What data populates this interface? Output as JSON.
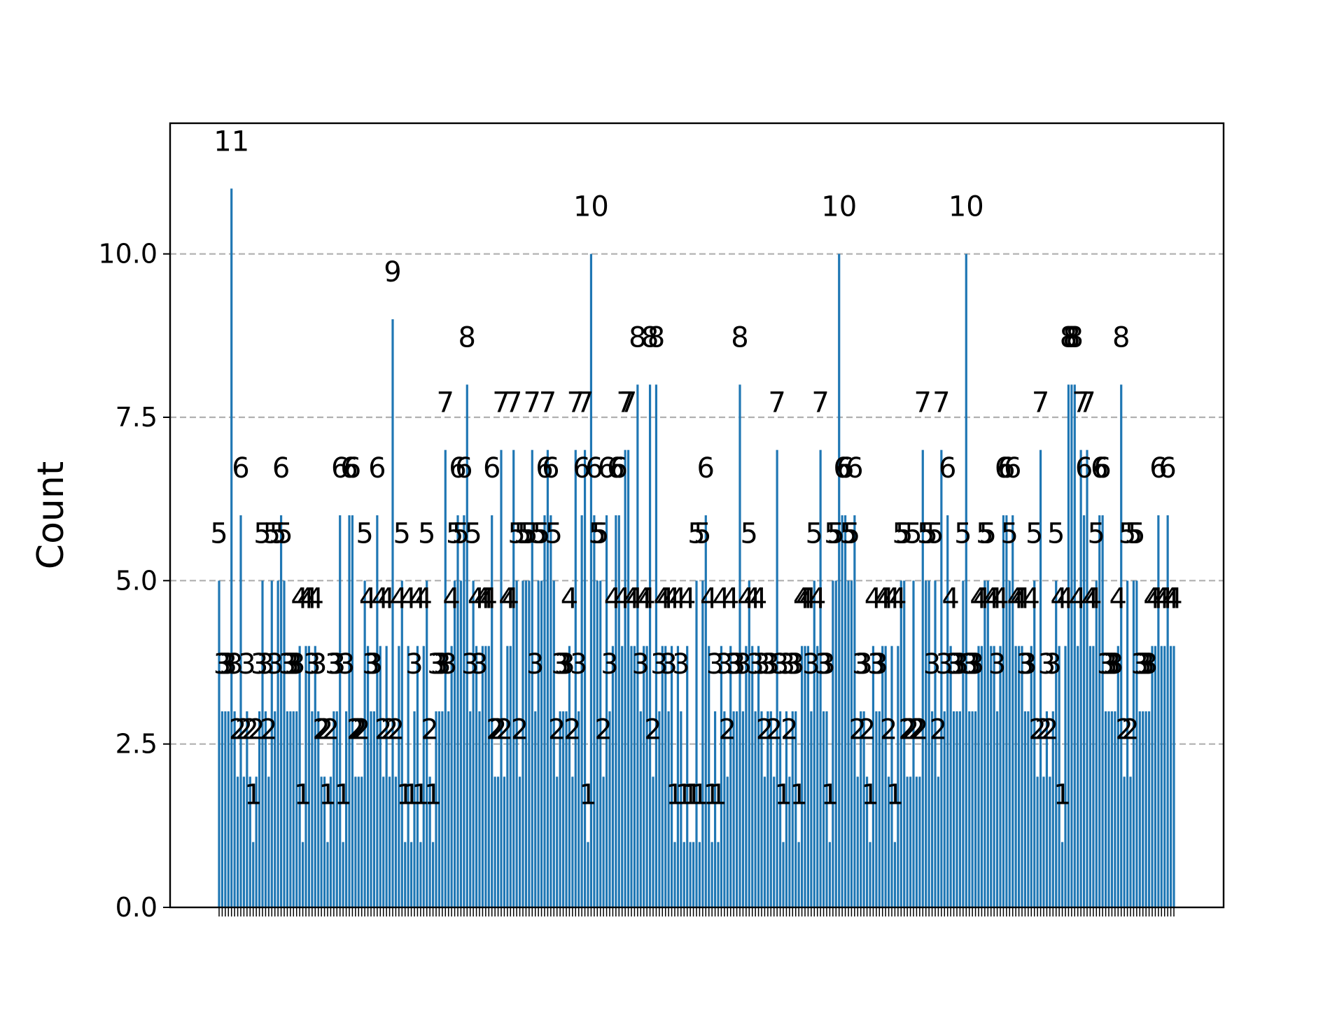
{
  "chart_data": {
    "type": "bar",
    "ylabel": "Count",
    "ylim": [
      0,
      12
    ],
    "yticks": [
      0,
      2.5,
      5,
      7.5,
      10
    ],
    "ytick_labels": [
      "0.0",
      "2.5",
      "5.0",
      "7.5",
      "10.0"
    ],
    "grid": "horizontal dashed",
    "bar_color": "#1f77b4",
    "values": [
      5,
      3,
      3,
      3,
      11,
      3,
      2,
      6,
      2,
      3,
      2,
      1,
      2,
      3,
      5,
      3,
      2,
      5,
      3,
      5,
      6,
      5,
      3,
      3,
      3,
      3,
      4,
      1,
      4,
      4,
      3,
      4,
      3,
      2,
      2,
      1,
      2,
      3,
      3,
      6,
      1,
      3,
      6,
      6,
      2,
      2,
      2,
      5,
      4,
      3,
      3,
      6,
      4,
      2,
      4,
      2,
      9,
      2,
      4,
      5,
      1,
      4,
      1,
      3,
      4,
      1,
      4,
      5,
      2,
      1,
      3,
      3,
      3,
      7,
      3,
      4,
      5,
      6,
      5,
      6,
      8,
      3,
      5,
      4,
      3,
      4,
      4,
      4,
      6,
      2,
      2,
      7,
      2,
      4,
      4,
      7,
      5,
      2,
      5,
      5,
      5,
      7,
      3,
      5,
      5,
      6,
      7,
      6,
      5,
      2,
      3,
      3,
      3,
      4,
      2,
      7,
      3,
      6,
      7,
      1,
      10,
      6,
      5,
      5,
      2,
      6,
      3,
      4,
      6,
      6,
      4,
      7,
      7,
      4,
      4,
      8,
      3,
      4,
      4,
      8,
      2,
      8,
      3,
      4,
      4,
      3,
      4,
      1,
      4,
      3,
      1,
      4,
      1,
      1,
      5,
      1,
      5,
      6,
      4,
      1,
      3,
      1,
      4,
      3,
      2,
      4,
      3,
      3,
      8,
      3,
      4,
      5,
      4,
      3,
      4,
      3,
      2,
      3,
      3,
      2,
      7,
      3,
      1,
      3,
      2,
      3,
      3,
      1,
      4,
      4,
      4,
      3,
      5,
      4,
      7,
      3,
      3,
      1,
      5,
      5,
      10,
      6,
      6,
      5,
      5,
      6,
      2,
      3,
      3,
      2,
      1,
      4,
      3,
      3,
      4,
      4,
      2,
      4,
      1,
      4,
      5,
      5,
      2,
      2,
      5,
      2,
      2,
      7,
      5,
      5,
      3,
      5,
      2,
      7,
      3,
      6,
      4,
      3,
      3,
      3,
      5,
      10,
      3,
      3,
      3,
      4,
      4,
      5,
      5,
      4,
      4,
      3,
      4,
      6,
      6,
      5,
      6,
      4,
      4,
      4,
      3,
      3,
      4,
      5,
      2,
      7,
      2,
      3,
      2,
      3,
      5,
      4,
      1,
      4,
      8,
      8,
      8,
      4,
      7,
      6,
      7,
      4,
      4,
      5,
      6,
      6,
      3,
      3,
      3,
      3,
      4,
      8,
      2,
      5,
      2,
      5,
      5,
      3,
      3,
      3,
      3,
      4,
      4,
      6,
      4,
      4,
      6,
      4,
      4
    ]
  }
}
